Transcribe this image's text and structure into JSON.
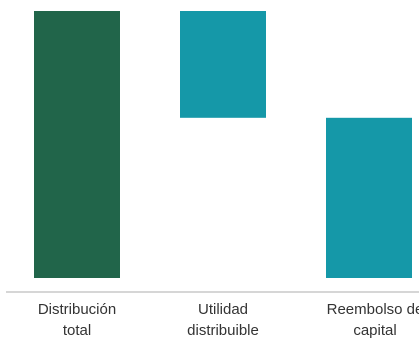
{
  "chart_data": {
    "type": "bar",
    "subtype": "waterfall",
    "title": "",
    "xlabel": "",
    "ylabel": "",
    "ylim": [
      0,
      100
    ],
    "grid": false,
    "legend": "none",
    "categories": [
      [
        "Distribución",
        "total"
      ],
      [
        "Utilidad",
        "distribuible"
      ],
      [
        "Reembolso de",
        "capital"
      ]
    ],
    "bars": [
      {
        "base": 0,
        "top": 100,
        "color": "#21654a"
      },
      {
        "base": 60,
        "top": 100,
        "color": "#1598a8"
      },
      {
        "base": 0,
        "top": 60,
        "color": "#1598a8"
      }
    ]
  }
}
